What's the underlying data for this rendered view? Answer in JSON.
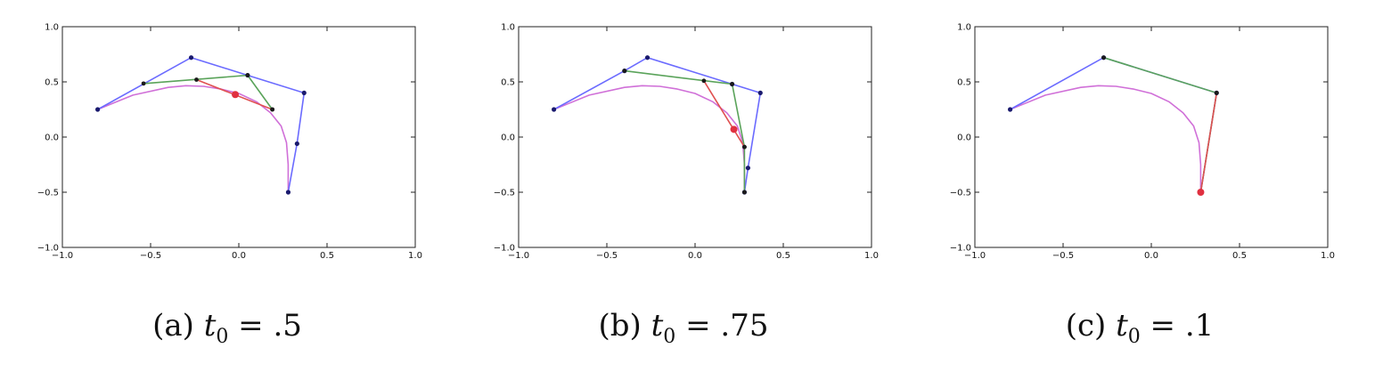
{
  "chart_data": [
    {
      "type": "line",
      "caption": {
        "prefix": "(a) ",
        "var": "t",
        "sub": "0",
        "rest": " = .5"
      },
      "xlim": [
        -1.0,
        1.0
      ],
      "ylim": [
        -1.0,
        1.0
      ],
      "xticks": [
        -1.0,
        -0.5,
        0.0,
        0.5,
        1.0
      ],
      "yticks": [
        -1.0,
        -0.5,
        0.0,
        0.5,
        1.0
      ],
      "xtick_labels": [
        "−1.0",
        "−0.5",
        "0.0",
        "0.5",
        "1.0"
      ],
      "ytick_labels": [
        "−1.0",
        "−0.5",
        "0.0",
        "0.5",
        "1.0"
      ],
      "grid": false,
      "control_polygon": {
        "color": "#6b6bff",
        "points": [
          [
            -0.8,
            0.25
          ],
          [
            -0.27,
            0.72
          ],
          [
            0.05,
            0.56
          ],
          [
            0.37,
            0.4
          ],
          [
            0.33,
            -0.06
          ],
          [
            0.28,
            -0.5
          ]
        ]
      },
      "level_2": {
        "color": "#5aa35a",
        "points": [
          [
            -0.54,
            0.485
          ],
          [
            0.05,
            0.56
          ],
          [
            0.19,
            0.25
          ]
        ]
      },
      "level_3": {
        "color": "#e05050",
        "points": [
          [
            -0.24,
            0.52
          ],
          [
            0.19,
            0.25
          ]
        ]
      },
      "curve": {
        "color": "#d070d8",
        "points": [
          [
            -0.8,
            0.25
          ],
          [
            -0.6,
            0.38
          ],
          [
            -0.4,
            0.45
          ],
          [
            -0.3,
            0.465
          ],
          [
            -0.2,
            0.46
          ],
          [
            -0.1,
            0.435
          ],
          [
            0.0,
            0.395
          ],
          [
            0.1,
            0.32
          ],
          [
            0.18,
            0.22
          ],
          [
            0.24,
            0.1
          ],
          [
            0.27,
            -0.05
          ],
          [
            0.28,
            -0.25
          ],
          [
            0.28,
            -0.5
          ]
        ]
      },
      "point": {
        "color": "#e03040",
        "xy": [
          -0.02,
          0.385
        ]
      }
    },
    {
      "type": "line",
      "caption": {
        "prefix": "(b) ",
        "var": "t",
        "sub": "0",
        "rest": " = .75"
      },
      "xlim": [
        -1.0,
        1.0
      ],
      "ylim": [
        -1.0,
        1.0
      ],
      "xticks": [
        -1.0,
        -0.5,
        0.0,
        0.5,
        1.0
      ],
      "yticks": [
        -1.0,
        -0.5,
        0.0,
        0.5,
        1.0
      ],
      "xtick_labels": [
        "−1.0",
        "−0.5",
        "0.0",
        "0.5",
        "1.0"
      ],
      "ytick_labels": [
        "−1.0",
        "−0.5",
        "0.0",
        "0.5",
        "1.0"
      ],
      "grid": false,
      "control_polygon": {
        "color": "#6b6bff",
        "points": [
          [
            -0.8,
            0.25
          ],
          [
            -0.4,
            0.6
          ],
          [
            -0.27,
            0.72
          ],
          [
            0.21,
            0.48
          ],
          [
            0.37,
            0.4
          ],
          [
            0.3,
            -0.28
          ],
          [
            0.28,
            -0.5
          ]
        ]
      },
      "level_2": {
        "color": "#5aa35a",
        "points": [
          [
            -0.4,
            0.6
          ],
          [
            0.21,
            0.48
          ],
          [
            0.28,
            -0.09
          ],
          [
            0.28,
            -0.5
          ]
        ]
      },
      "level_3": {
        "color": "#e05050",
        "points": [
          [
            0.05,
            0.51
          ],
          [
            0.28,
            -0.09
          ]
        ]
      },
      "curve": {
        "color": "#d070d8",
        "points": [
          [
            -0.8,
            0.25
          ],
          [
            -0.6,
            0.38
          ],
          [
            -0.4,
            0.45
          ],
          [
            -0.3,
            0.465
          ],
          [
            -0.2,
            0.46
          ],
          [
            -0.1,
            0.435
          ],
          [
            0.0,
            0.395
          ],
          [
            0.1,
            0.32
          ],
          [
            0.18,
            0.22
          ],
          [
            0.24,
            0.1
          ],
          [
            0.27,
            -0.05
          ],
          [
            0.28,
            -0.25
          ],
          [
            0.28,
            -0.5
          ]
        ]
      },
      "point": {
        "color": "#e03040",
        "xy": [
          0.22,
          0.07
        ]
      }
    },
    {
      "type": "line",
      "caption": {
        "prefix": "(c) ",
        "var": "t",
        "sub": "0",
        "rest": " = .1"
      },
      "xlim": [
        -1.0,
        1.0
      ],
      "ylim": [
        -1.0,
        1.0
      ],
      "xticks": [
        -1.0,
        -0.5,
        0.0,
        0.5,
        1.0
      ],
      "yticks": [
        -1.0,
        -0.5,
        0.0,
        0.5,
        1.0
      ],
      "xtick_labels": [
        "−1.0",
        "−0.5",
        "0.0",
        "0.5",
        "1.0"
      ],
      "ytick_labels": [
        "−1.0",
        "−0.5",
        "0.0",
        "0.5",
        "1.0"
      ],
      "grid": false,
      "control_polygon": {
        "color": "#6b6bff",
        "points": [
          [
            -0.8,
            0.25
          ],
          [
            -0.27,
            0.72
          ],
          [
            0.37,
            0.4
          ],
          [
            0.28,
            -0.5
          ]
        ]
      },
      "level_2": {
        "color": "#5aa35a",
        "points": [
          [
            -0.27,
            0.72
          ],
          [
            0.37,
            0.4
          ],
          [
            0.28,
            -0.5
          ]
        ]
      },
      "level_3": {
        "color": "#e05050",
        "points": [
          [
            0.37,
            0.4
          ],
          [
            0.28,
            -0.5
          ]
        ]
      },
      "curve": {
        "color": "#d070d8",
        "points": [
          [
            -0.8,
            0.25
          ],
          [
            -0.6,
            0.38
          ],
          [
            -0.4,
            0.45
          ],
          [
            -0.3,
            0.465
          ],
          [
            -0.2,
            0.46
          ],
          [
            -0.1,
            0.435
          ],
          [
            0.0,
            0.395
          ],
          [
            0.1,
            0.32
          ],
          [
            0.18,
            0.22
          ],
          [
            0.24,
            0.1
          ],
          [
            0.27,
            -0.05
          ],
          [
            0.28,
            -0.25
          ],
          [
            0.28,
            -0.5
          ]
        ]
      },
      "point": {
        "color": "#e03040",
        "xy": [
          0.28,
          -0.5
        ]
      }
    }
  ]
}
